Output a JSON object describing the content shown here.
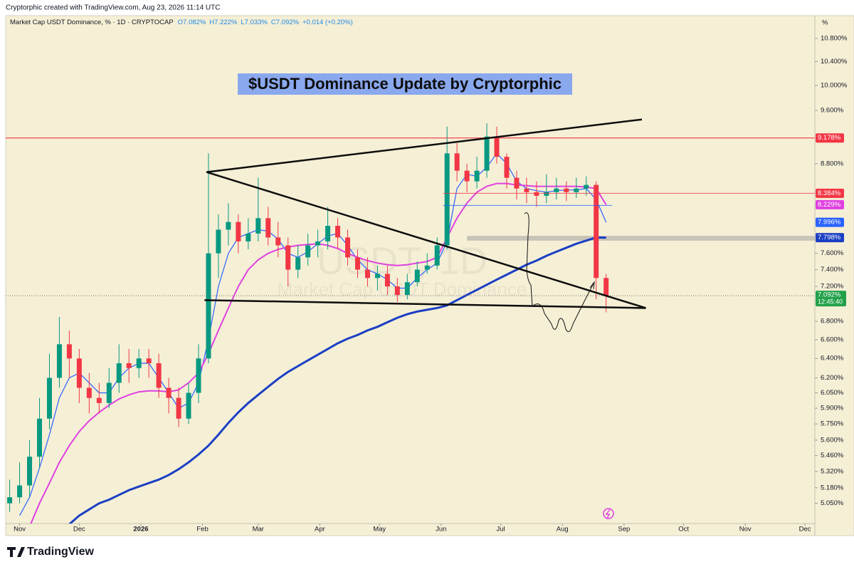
{
  "chart_data": {
    "type": "candlestick",
    "header": "Cryptorphic created with TradingView.com, Aug 23, 2026 11:14 UTC",
    "symbol": "Market Cap USDT Dominance, % · 1D · CRYPTOCAP",
    "ohlc_text": [
      "O7.082%",
      "H7.222%",
      "L7.033%",
      "C7.092%",
      "+0.014 (+0.20%)"
    ],
    "title": "$USDT Dominance Update by Cryptorphic",
    "watermark": [
      "USDT, 1D",
      "Market Cap USDT Dominance"
    ],
    "axis_unit": "%",
    "brand": "TradingView",
    "log_scale": true,
    "grid": false,
    "up_color": "#089981",
    "down_color": "#f23645",
    "x": [
      "2025-10-27",
      "2025-11-01",
      "2025-11-06",
      "2025-11-11",
      "2025-11-16",
      "2025-11-21",
      "2025-11-26",
      "2025-12-01",
      "2025-12-06",
      "2025-12-11",
      "2025-12-16",
      "2025-12-21",
      "2025-12-26",
      "2025-12-31",
      "2026-01-05",
      "2026-01-10",
      "2026-01-15",
      "2026-01-20",
      "2026-01-25",
      "2026-01-30",
      "2026-02-04",
      "2026-02-09",
      "2026-02-14",
      "2026-02-19",
      "2026-02-24",
      "2026-03-01",
      "2026-03-06",
      "2026-03-11",
      "2026-03-16",
      "2026-03-21",
      "2026-03-26",
      "2026-03-31",
      "2026-04-05",
      "2026-04-10",
      "2026-04-15",
      "2026-04-20",
      "2026-04-25",
      "2026-04-30",
      "2026-05-05",
      "2026-05-10",
      "2026-05-15",
      "2026-05-20",
      "2026-05-25",
      "2026-05-30",
      "2026-06-04",
      "2026-06-09",
      "2026-06-14",
      "2026-06-19",
      "2026-06-24",
      "2026-06-29",
      "2026-07-04",
      "2026-07-09",
      "2026-07-14",
      "2026-07-19",
      "2026-07-24",
      "2026-07-29",
      "2026-08-03",
      "2026-08-08",
      "2026-08-13",
      "2026-08-18",
      "2026-08-23"
    ],
    "open": [
      5.05,
      5.1,
      5.2,
      5.45,
      5.8,
      6.2,
      6.55,
      6.4,
      6.1,
      6.0,
      5.95,
      6.15,
      6.35,
      6.3,
      6.4,
      6.35,
      6.1,
      6.0,
      5.8,
      6.05,
      6.4,
      7.6,
      7.9,
      8.0,
      7.75,
      7.85,
      8.05,
      7.8,
      7.7,
      7.4,
      7.55,
      7.7,
      7.75,
      7.95,
      7.8,
      7.55,
      7.4,
      7.3,
      7.35,
      7.2,
      7.1,
      7.25,
      7.4,
      7.45,
      7.7,
      8.95,
      8.7,
      8.55,
      8.7,
      9.2,
      8.9,
      8.6,
      8.45,
      8.4,
      8.35,
      8.4,
      8.45,
      8.4,
      8.45,
      8.5,
      7.3
    ],
    "high": [
      5.25,
      5.4,
      5.6,
      6.0,
      6.45,
      6.85,
      6.7,
      6.5,
      6.25,
      6.15,
      6.3,
      6.55,
      6.5,
      6.5,
      6.5,
      6.45,
      6.2,
      6.1,
      6.15,
      6.55,
      8.95,
      8.1,
      8.25,
      8.1,
      8.05,
      8.6,
      8.2,
      8.0,
      7.8,
      7.7,
      7.85,
      7.9,
      8.2,
      8.05,
      7.9,
      7.65,
      7.55,
      7.45,
      7.45,
      7.3,
      7.35,
      7.5,
      7.6,
      7.8,
      9.35,
      9.1,
      8.8,
      8.9,
      9.4,
      9.35,
      8.95,
      8.7,
      8.6,
      8.55,
      8.65,
      8.6,
      8.55,
      8.6,
      8.62,
      8.55,
      7.35
    ],
    "low": [
      4.98,
      5.05,
      5.1,
      5.35,
      5.7,
      6.1,
      6.2,
      5.95,
      5.85,
      5.85,
      5.9,
      6.05,
      6.15,
      6.2,
      6.2,
      6.0,
      5.85,
      5.72,
      5.75,
      5.95,
      6.35,
      7.3,
      7.7,
      7.6,
      7.65,
      7.75,
      7.7,
      7.55,
      7.2,
      7.3,
      7.45,
      7.55,
      7.65,
      7.65,
      7.45,
      7.3,
      7.2,
      7.15,
      7.1,
      7.02,
      7.05,
      7.2,
      7.35,
      7.4,
      7.65,
      8.55,
      8.4,
      8.45,
      8.6,
      8.8,
      8.45,
      8.3,
      8.25,
      8.2,
      8.25,
      8.3,
      8.28,
      8.32,
      8.35,
      7.05,
      6.9
    ],
    "close": [
      5.1,
      5.2,
      5.45,
      5.8,
      6.2,
      6.55,
      6.4,
      6.1,
      6.0,
      5.95,
      6.15,
      6.35,
      6.3,
      6.4,
      6.35,
      6.1,
      6.0,
      5.8,
      6.05,
      6.4,
      7.6,
      7.9,
      8.0,
      7.75,
      7.85,
      8.05,
      7.8,
      7.7,
      7.4,
      7.55,
      7.7,
      7.75,
      7.95,
      7.8,
      7.55,
      7.4,
      7.3,
      7.35,
      7.2,
      7.1,
      7.25,
      7.4,
      7.45,
      7.7,
      8.95,
      8.7,
      8.55,
      8.7,
      9.2,
      8.9,
      8.6,
      8.45,
      8.4,
      8.35,
      8.4,
      8.45,
      8.4,
      8.45,
      8.5,
      7.3,
      7.092
    ],
    "close_label": "7.092%",
    "countdown": "12:45:40",
    "series": [
      {
        "color": "#2962ff",
        "last_label": "7.996%",
        "values": [
          null,
          4.95,
          5.1,
          5.35,
          5.65,
          6.0,
          6.2,
          6.25,
          6.15,
          6.05,
          6.05,
          6.2,
          6.3,
          6.35,
          6.35,
          6.2,
          6.05,
          5.9,
          5.95,
          6.15,
          6.6,
          7.2,
          7.6,
          7.8,
          7.85,
          7.9,
          7.88,
          7.78,
          7.6,
          7.55,
          7.62,
          7.72,
          7.82,
          7.85,
          7.7,
          7.52,
          7.4,
          7.35,
          7.28,
          7.18,
          7.18,
          7.3,
          7.4,
          7.48,
          7.75,
          8.45,
          8.65,
          8.62,
          8.75,
          8.95,
          8.8,
          8.55,
          8.45,
          8.42,
          8.4,
          8.42,
          8.43,
          8.43,
          8.45,
          8.3,
          7.996
        ]
      },
      {
        "color": "#e040e0",
        "last_label": "8.229%",
        "values": [
          null,
          null,
          4.86,
          5.05,
          5.22,
          5.4,
          5.55,
          5.68,
          5.78,
          5.86,
          5.93,
          5.99,
          6.03,
          6.06,
          6.07,
          6.07,
          6.06,
          6.08,
          6.15,
          6.25,
          6.45,
          6.7,
          6.95,
          7.2,
          7.4,
          7.52,
          7.6,
          7.65,
          7.68,
          7.7,
          7.71,
          7.72,
          7.7,
          7.66,
          7.6,
          7.55,
          7.51,
          7.48,
          7.46,
          7.45,
          7.46,
          7.48,
          7.5,
          7.55,
          7.8,
          8.05,
          8.25,
          8.4,
          8.48,
          8.52,
          8.52,
          8.5,
          8.49,
          8.48,
          8.48,
          8.48,
          8.48,
          8.48,
          8.47,
          8.45,
          8.229
        ]
      },
      {
        "color": "#1b3fc4",
        "last_label": "7.798%",
        "values": [
          null,
          null,
          null,
          null,
          null,
          null,
          4.88,
          4.95,
          5.0,
          5.05,
          5.08,
          5.12,
          5.16,
          5.19,
          5.22,
          5.25,
          5.29,
          5.34,
          5.4,
          5.47,
          5.55,
          5.65,
          5.76,
          5.86,
          5.95,
          6.03,
          6.11,
          6.19,
          6.26,
          6.32,
          6.38,
          6.44,
          6.5,
          6.56,
          6.61,
          6.65,
          6.7,
          6.74,
          6.79,
          6.84,
          6.88,
          6.91,
          6.93,
          6.95,
          6.98,
          7.04,
          7.1,
          7.16,
          7.22,
          7.28,
          7.34,
          7.4,
          7.46,
          7.51,
          7.57,
          7.62,
          7.67,
          7.72,
          7.76,
          7.8,
          7.798
        ]
      }
    ],
    "levels": [
      {
        "value": 9.178,
        "label": "9.178%",
        "color": "#f23645"
      },
      {
        "value": 8.384,
        "label": "8.384%",
        "color": "#f23645",
        "from": "2026-06-02"
      },
      {
        "value": 8.22,
        "color": "#2962ff",
        "from": "2026-06-02",
        "to": "2026-08-26"
      }
    ],
    "zone": {
      "from": "2026-06-14",
      "y": [
        7.76,
        7.82
      ],
      "color": "#9e9e9e"
    },
    "trendlines": [
      {
        "x": [
          "2026-02-03",
          "2026-09-10"
        ],
        "y": [
          8.68,
          9.46
        ]
      },
      {
        "x": [
          "2026-02-03",
          "2026-09-12"
        ],
        "y": [
          8.68,
          6.95
        ]
      },
      {
        "x": [
          "2026-02-02",
          "2026-09-12"
        ],
        "y": [
          7.04,
          6.95
        ]
      }
    ],
    "xlim": [
      "2025-10-25",
      "2026-12-06"
    ],
    "xticks": [
      {
        "value": "2025-11-01",
        "label": "Nov"
      },
      {
        "value": "2025-12-01",
        "label": "Dec"
      },
      {
        "value": "2026-01-01",
        "label": "2026"
      },
      {
        "value": "2026-02-01",
        "label": "Feb"
      },
      {
        "value": "2026-03-01",
        "label": "Mar"
      },
      {
        "value": "2026-04-01",
        "label": "Apr"
      },
      {
        "value": "2026-05-01",
        "label": "May"
      },
      {
        "value": "2026-06-01",
        "label": "Jun"
      },
      {
        "value": "2026-07-01",
        "label": "Jul"
      },
      {
        "value": "2026-08-01",
        "label": "Aug"
      },
      {
        "value": "2026-09-01",
        "label": "Sep"
      },
      {
        "value": "2026-10-01",
        "label": "Oct"
      },
      {
        "value": "2026-11-01",
        "label": "Nov"
      },
      {
        "value": "2026-12-01",
        "label": "Dec"
      }
    ],
    "ylim": [
      4.79,
      11.21
    ],
    "yticks": [
      {
        "value": 10.8,
        "label": "10.800%"
      },
      {
        "value": 10.4,
        "label": "10.400%"
      },
      {
        "value": 10.0,
        "label": "10.000%"
      },
      {
        "value": 9.6,
        "label": "9.600%"
      },
      {
        "value": 8.8,
        "label": "8.800%"
      },
      {
        "value": 7.6,
        "label": "7.600%"
      },
      {
        "value": 7.4,
        "label": "7.400%"
      },
      {
        "value": 7.2,
        "label": "7.200%"
      },
      {
        "value": 6.8,
        "label": "6.800%"
      },
      {
        "value": 6.6,
        "label": "6.600%"
      },
      {
        "value": 6.4,
        "label": "6.400%"
      },
      {
        "value": 6.2,
        "label": "6.200%"
      },
      {
        "value": 6.05,
        "label": "6.050%"
      },
      {
        "value": 5.9,
        "label": "5.900%"
      },
      {
        "value": 5.75,
        "label": "5.750%"
      },
      {
        "value": 5.6,
        "label": "5.600%"
      },
      {
        "value": 5.46,
        "label": "5.460%"
      },
      {
        "value": 5.32,
        "label": "5.320%"
      },
      {
        "value": 5.18,
        "label": "5.180%"
      },
      {
        "value": 5.05,
        "label": "5.050%"
      }
    ]
  }
}
